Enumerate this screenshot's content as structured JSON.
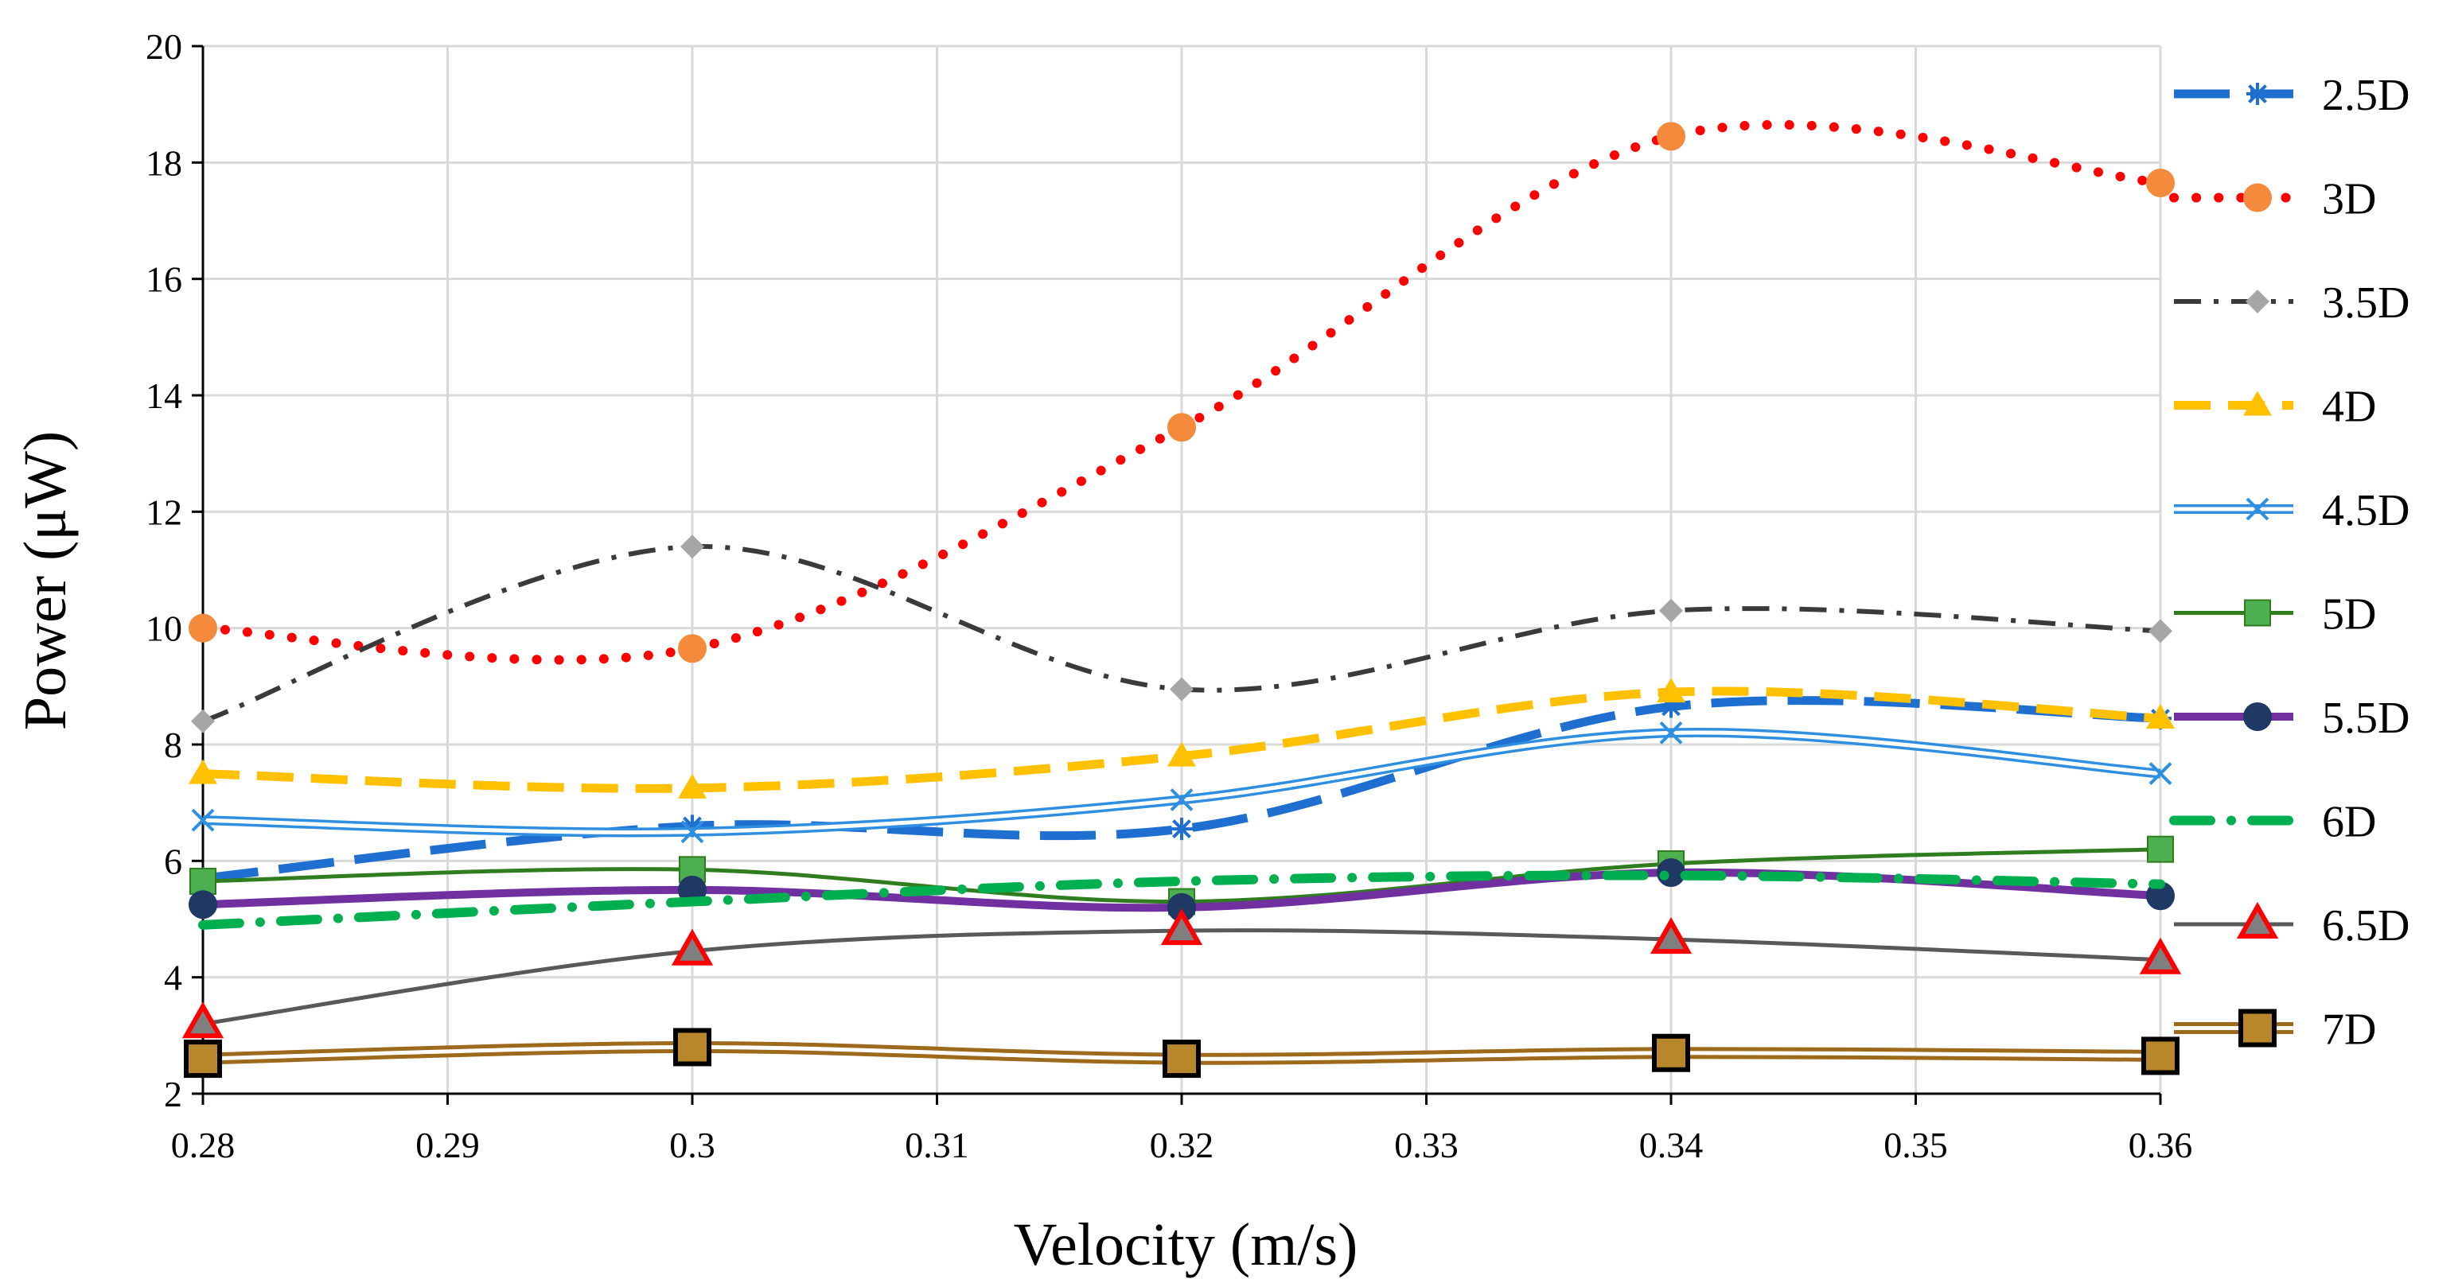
{
  "chart_data": {
    "type": "line",
    "title": "",
    "xlabel": "Velocity (m/s)",
    "ylabel": "Power (μW)",
    "x": [
      0.28,
      0.3,
      0.32,
      0.34,
      0.36
    ],
    "xlim": [
      0.28,
      0.36
    ],
    "ylim": [
      2,
      20
    ],
    "xticks": [
      "0.28",
      "0.29",
      "0.3",
      "0.31",
      "0.32",
      "0.33",
      "0.34",
      "0.35",
      "0.36"
    ],
    "yticks": [
      "2",
      "4",
      "6",
      "8",
      "10",
      "12",
      "14",
      "16",
      "18",
      "20"
    ],
    "grid": true,
    "legend_position": "right",
    "series": [
      {
        "name": "2.5D",
        "values": [
          5.7,
          6.6,
          6.55,
          8.65,
          8.45
        ],
        "color": "#1f6fd0",
        "style": "longdash",
        "marker": "star"
      },
      {
        "name": "3D",
        "values": [
          10.0,
          9.65,
          13.45,
          18.45,
          17.65
        ],
        "color": "#ff0000",
        "style": "dotted",
        "marker": "circle",
        "marker_color": "#f58a3c"
      },
      {
        "name": "3.5D",
        "values": [
          8.4,
          11.4,
          8.95,
          10.3,
          9.95
        ],
        "color": "#3a3a3a",
        "style": "dashdot",
        "marker": "diamond",
        "marker_color": "#a6a6a6"
      },
      {
        "name": "4D",
        "values": [
          7.5,
          7.25,
          7.8,
          8.9,
          8.45
        ],
        "color": "#ffc000",
        "style": "dashed",
        "marker": "triangle"
      },
      {
        "name": "4.5D",
        "values": [
          6.7,
          6.5,
          7.05,
          8.2,
          7.5
        ],
        "color": "#2e8ee0",
        "style": "double",
        "marker": "x"
      },
      {
        "name": "5D",
        "values": [
          5.65,
          5.85,
          5.3,
          5.95,
          6.2
        ],
        "color": "#2f7d1f",
        "style": "solid",
        "marker": "square",
        "marker_color": "#4caf50"
      },
      {
        "name": "5.5D",
        "values": [
          5.25,
          5.5,
          5.2,
          5.8,
          5.4
        ],
        "color": "#7030a0",
        "style": "solid-thick",
        "marker": "circle",
        "marker_color": "#1f3864"
      },
      {
        "name": "6D",
        "values": [
          4.9,
          5.3,
          5.65,
          5.75,
          5.6
        ],
        "color": "#00b050",
        "style": "dashdot-green",
        "marker": "none"
      },
      {
        "name": "6.5D",
        "values": [
          3.2,
          4.45,
          4.8,
          4.65,
          4.3
        ],
        "color": "#595959",
        "style": "solid-thin",
        "marker": "triangle-red"
      },
      {
        "name": "7D",
        "values": [
          2.6,
          2.8,
          2.6,
          2.7,
          2.65
        ],
        "color": "#9c6a1a",
        "style": "double-brown",
        "marker": "square-brown"
      }
    ]
  }
}
